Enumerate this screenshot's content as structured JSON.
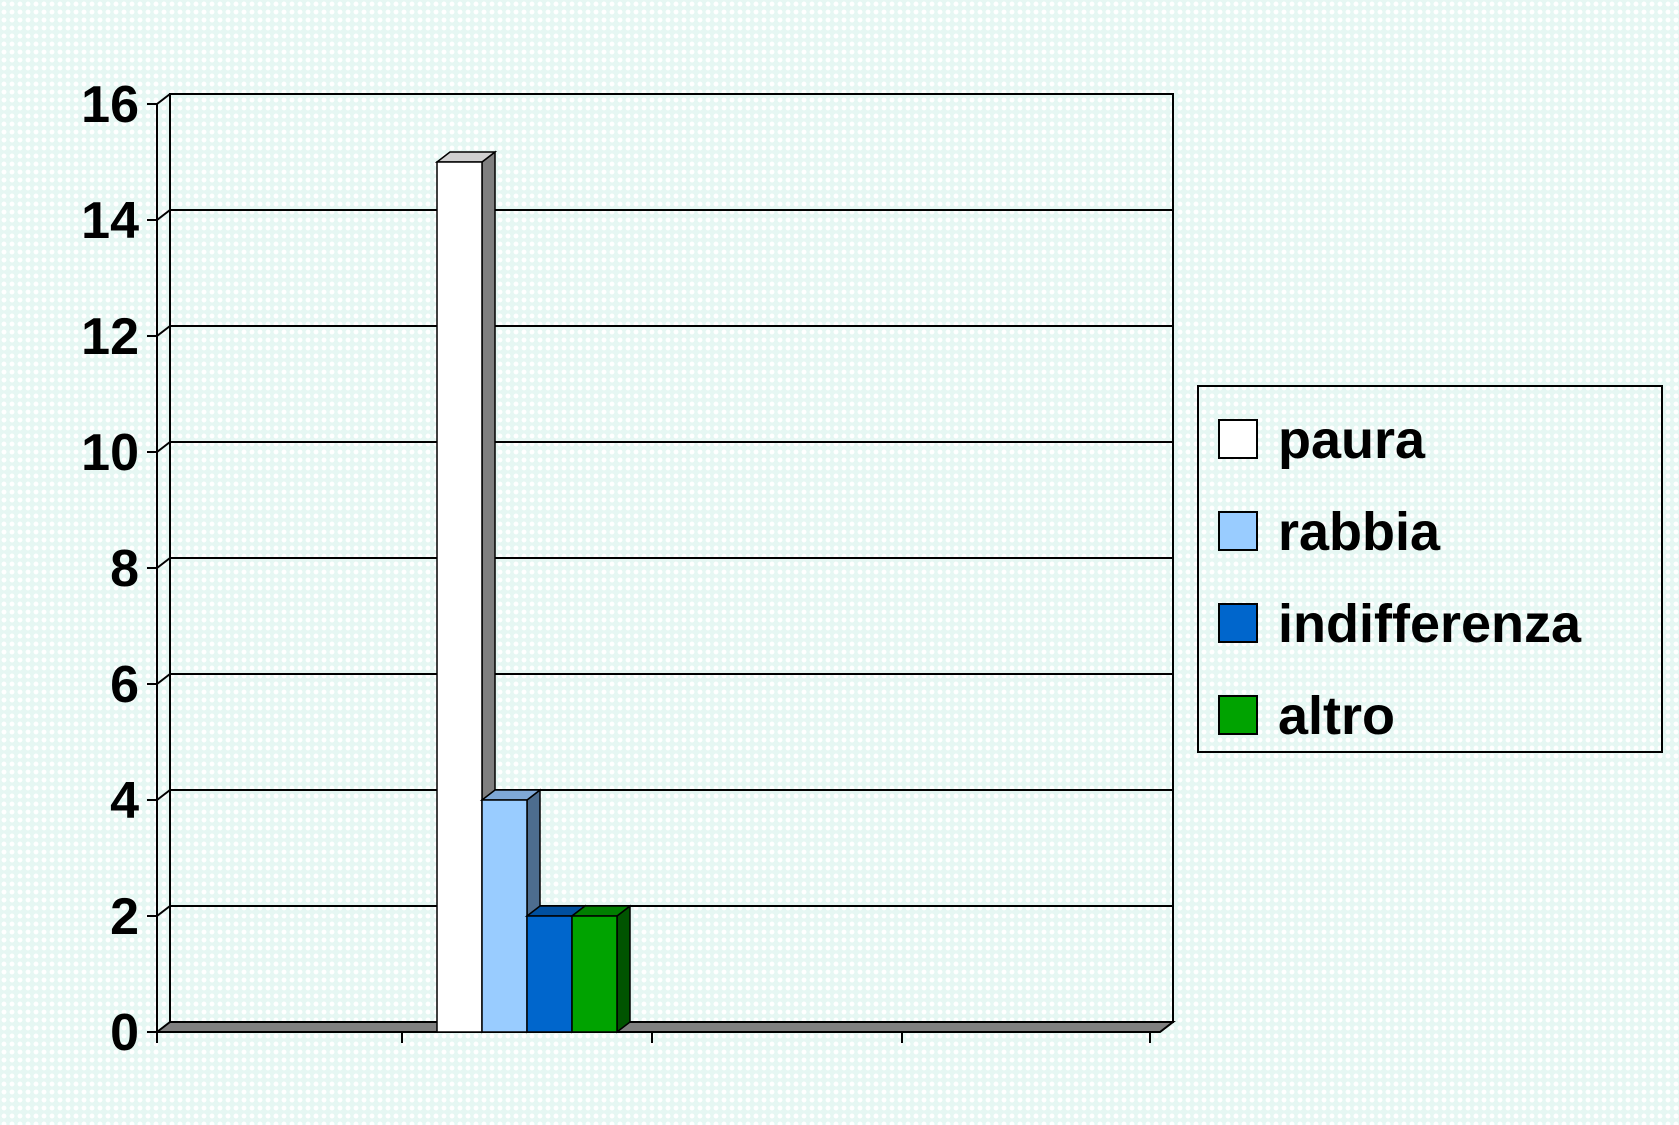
{
  "chart_data": {
    "type": "bar",
    "style": "3d-clustered-column",
    "title": "",
    "xlabel": "",
    "ylabel": "",
    "ylim": [
      0,
      16
    ],
    "y_ticks": [
      "0",
      "2",
      "4",
      "6",
      "8",
      "10",
      "12",
      "14",
      "16"
    ],
    "grid": true,
    "legend_position": "right",
    "categories": [
      ""
    ],
    "series": [
      {
        "name": "paura",
        "values": [
          15
        ],
        "color": "#ffffff",
        "side_color": "#7f7f7f",
        "top_color": "#d0d0d0"
      },
      {
        "name": "rabbia",
        "values": [
          4
        ],
        "color": "#99ccff",
        "side_color": "#4d6d8f",
        "top_color": "#7fa8d6"
      },
      {
        "name": "indifferenza",
        "values": [
          2
        ],
        "color": "#0066cc",
        "side_color": "#003a73",
        "top_color": "#0050a0"
      },
      {
        "name": "altro",
        "values": [
          2
        ],
        "color": "#00a300",
        "side_color": "#005400",
        "top_color": "#007f00"
      }
    ]
  }
}
